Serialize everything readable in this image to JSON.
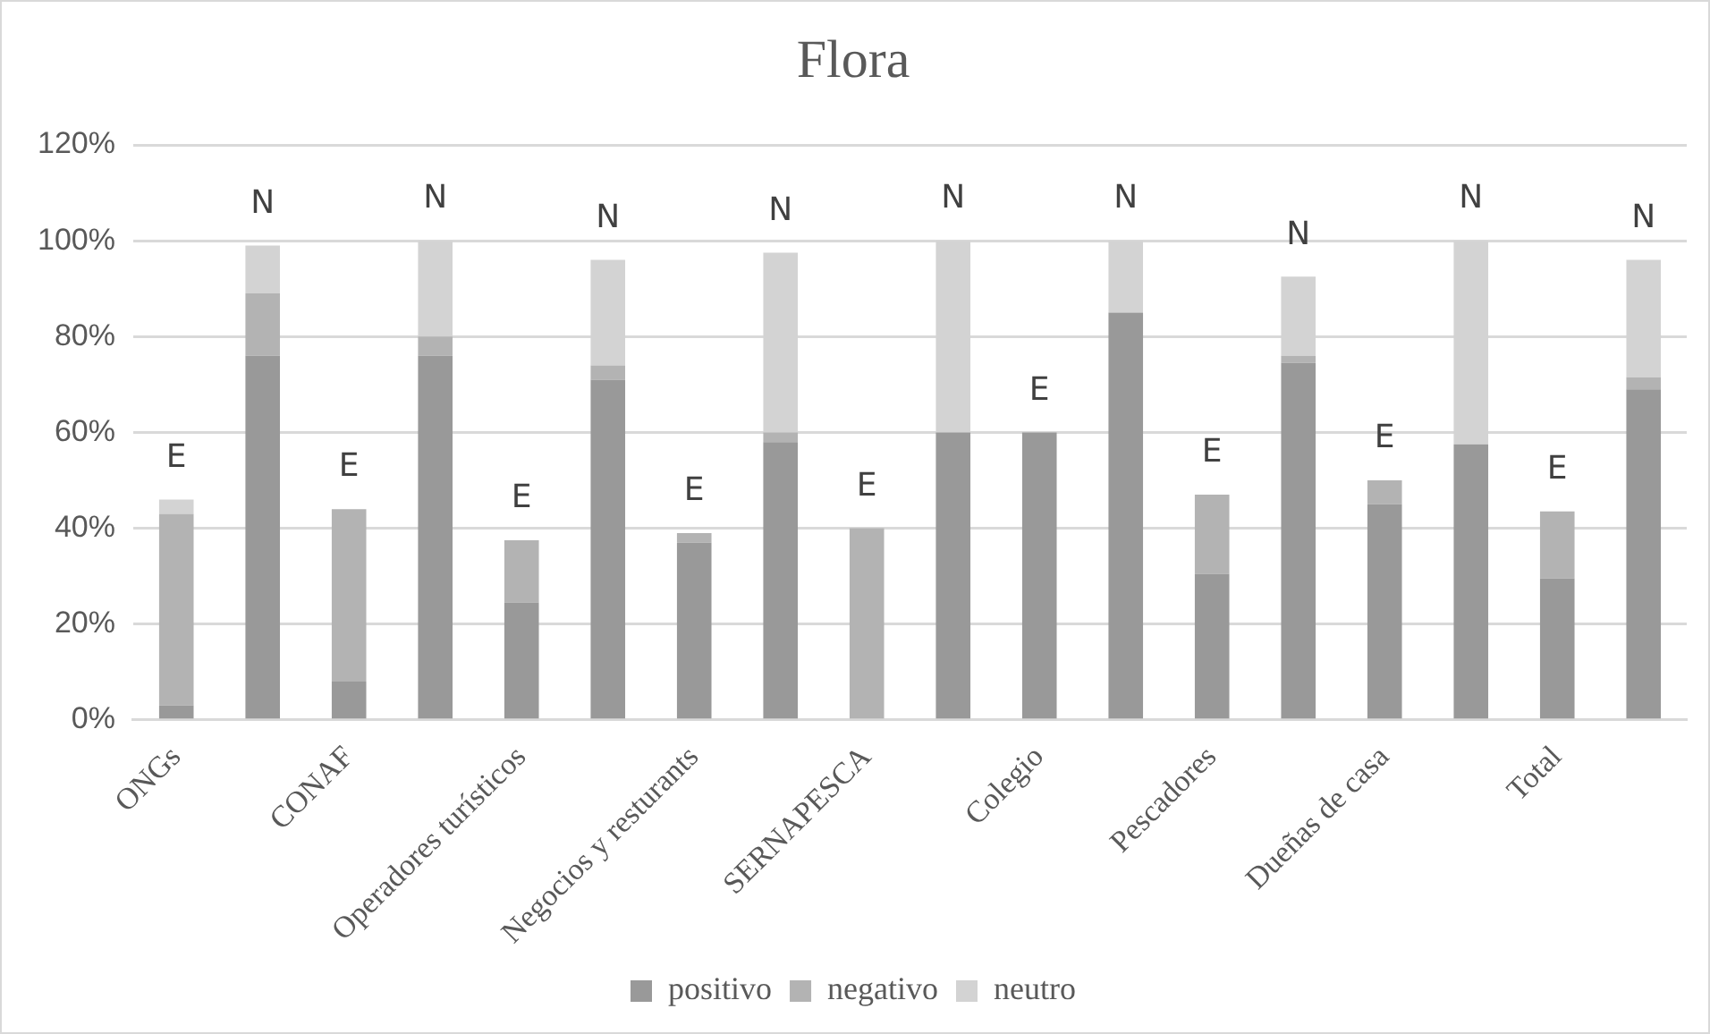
{
  "chart_data": {
    "type": "bar",
    "title": "Flora",
    "stacked": true,
    "categories": [
      "ONGs",
      null,
      "CONAF",
      null,
      "Operadores turísticos",
      null,
      "Negocios y resturants",
      null,
      "SERNAPESCA",
      null,
      "Colegio",
      null,
      "Pescadores",
      null,
      "Dueñas de casa",
      null,
      "Total",
      null
    ],
    "series": [
      {
        "name": "positivo",
        "color": "#999999",
        "values": [
          3,
          76,
          8,
          76,
          24.5,
          71,
          37,
          58,
          0,
          60,
          60,
          85,
          30.5,
          74.5,
          45,
          57.5,
          29.5,
          69
        ]
      },
      {
        "name": "negativo",
        "color": "#b3b3b3",
        "values": [
          40,
          13,
          36,
          4,
          13,
          3,
          2,
          2,
          40,
          0,
          0,
          0,
          16.5,
          1.5,
          5,
          0,
          14,
          2.5
        ]
      },
      {
        "name": "neutro",
        "color": "#d3d3d3",
        "values": [
          3,
          10,
          0,
          20,
          0,
          22,
          0,
          37.5,
          0,
          40,
          0,
          15,
          0,
          16.5,
          0,
          42.5,
          0,
          24.5
        ],
        "value_labels": [
          "E",
          "N",
          "E",
          "N",
          "E",
          "N",
          "E",
          "N",
          "E",
          "N",
          "E",
          "N",
          "E",
          "N",
          "E",
          "N",
          "E",
          "N"
        ]
      }
    ],
    "ylim": [
      0,
      120
    ],
    "yticks": [
      {
        "value": 0,
        "label": "0%"
      },
      {
        "value": 20,
        "label": "20%"
      },
      {
        "value": 40,
        "label": "40%"
      },
      {
        "value": 60,
        "label": "60%"
      },
      {
        "value": 80,
        "label": "80%"
      },
      {
        "value": 100,
        "label": "100%"
      },
      {
        "value": 120,
        "label": "120%"
      }
    ],
    "grid": "y",
    "legend": "bottom"
  }
}
